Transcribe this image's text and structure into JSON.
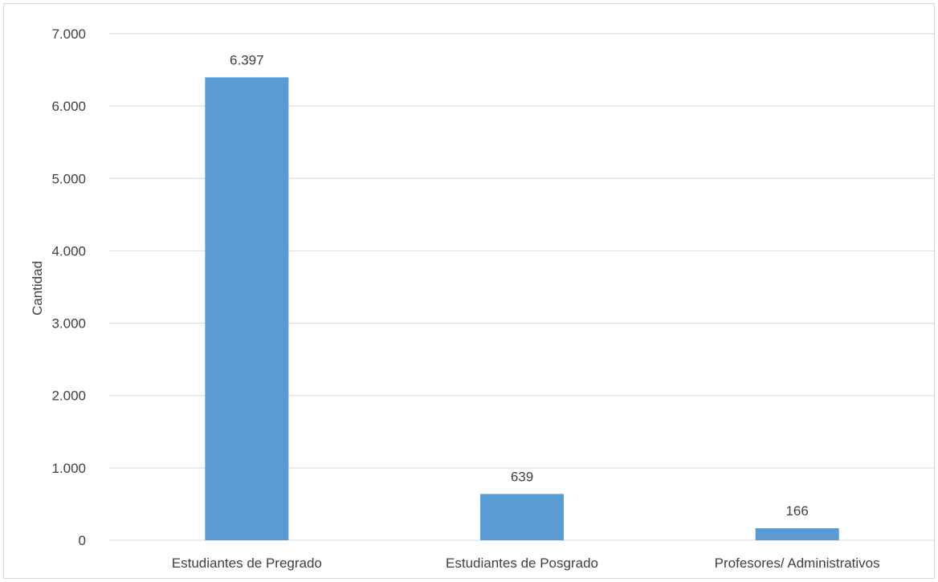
{
  "chart_data": {
    "type": "bar",
    "categories": [
      "Estudiantes de Pregrado",
      "Estudiantes de Posgrado",
      "Profesores/ Administrativos"
    ],
    "values": [
      6397,
      639,
      166
    ],
    "value_labels": [
      "6.397",
      "639",
      "166"
    ],
    "title": "",
    "xlabel": "",
    "ylabel": "Cantidad",
    "ylim": [
      0,
      7000
    ],
    "yticks": [
      0,
      1000,
      2000,
      3000,
      4000,
      5000,
      6000,
      7000
    ],
    "ytick_labels": [
      "0",
      "1.000",
      "2.000",
      "3.000",
      "4.000",
      "5.000",
      "6.000",
      "7.000"
    ],
    "grid": true,
    "legend": "none",
    "colors": {
      "bar": "#5b9bd5",
      "grid": "#d9d9d9",
      "text": "#404040",
      "border": "#d9d9d9"
    }
  }
}
